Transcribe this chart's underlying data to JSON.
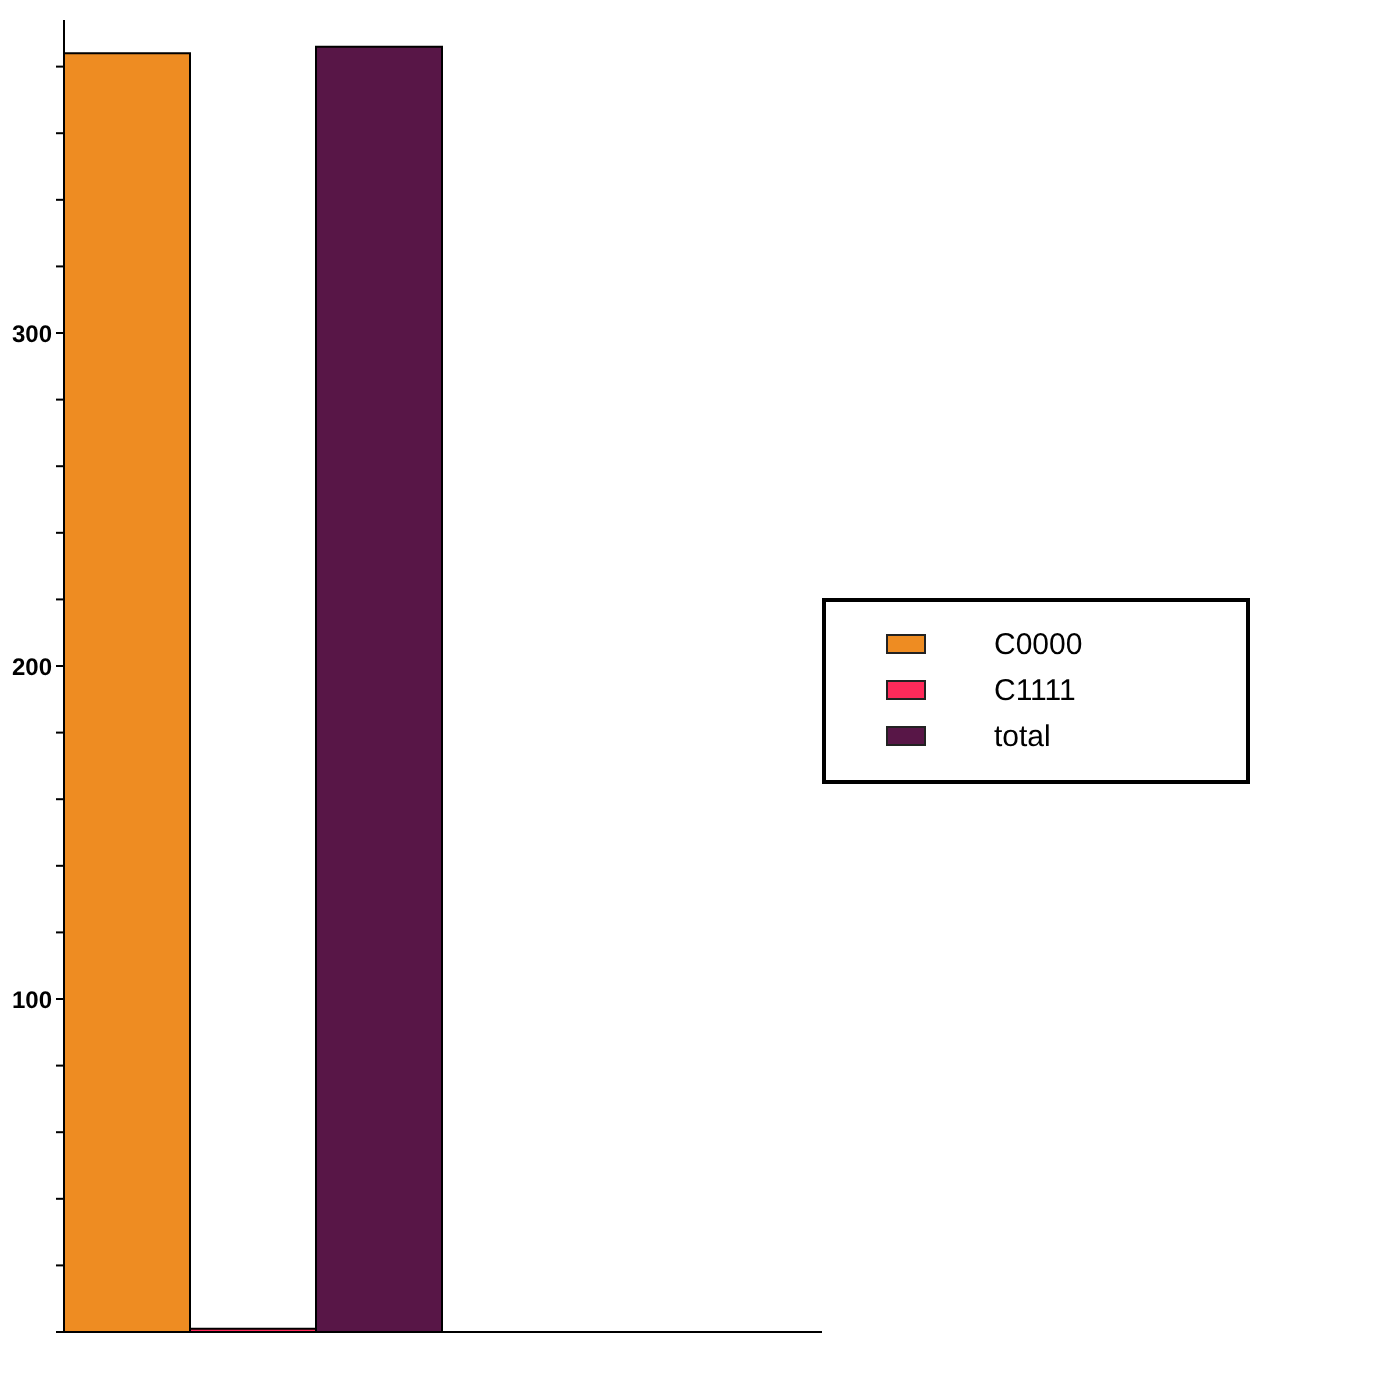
{
  "chart_data": {
    "type": "bar",
    "categories": [
      null,
      null
    ],
    "series": [
      {
        "name": "C0000",
        "color": "#ee8c22",
        "values": [
          384,
          null
        ]
      },
      {
        "name": "C1111",
        "color": "#ff2a5a",
        "values": [
          1,
          null
        ]
      },
      {
        "name": "total",
        "color": "#581647",
        "values": [
          386,
          null
        ]
      }
    ],
    "ylim": [
      0,
      394
    ],
    "yticks": [
      {
        "value": 0,
        "label": null
      },
      {
        "value": 20,
        "label": null
      },
      {
        "value": 40,
        "label": null
      },
      {
        "value": 60,
        "label": null
      },
      {
        "value": 80,
        "label": null
      },
      100,
      {
        "value": 120,
        "label": null
      },
      {
        "value": 140,
        "label": null
      },
      {
        "value": 160,
        "label": null
      },
      {
        "value": 180,
        "label": null
      },
      200,
      {
        "value": 220,
        "label": null
      },
      {
        "value": 240,
        "label": null
      },
      {
        "value": 260,
        "label": null
      },
      {
        "value": 280,
        "label": null
      },
      300,
      {
        "value": 320,
        "label": null
      },
      {
        "value": 340,
        "label": null
      },
      {
        "value": 360,
        "label": null
      },
      {
        "value": 380,
        "label": null
      }
    ],
    "legend": "right",
    "grid": false
  }
}
